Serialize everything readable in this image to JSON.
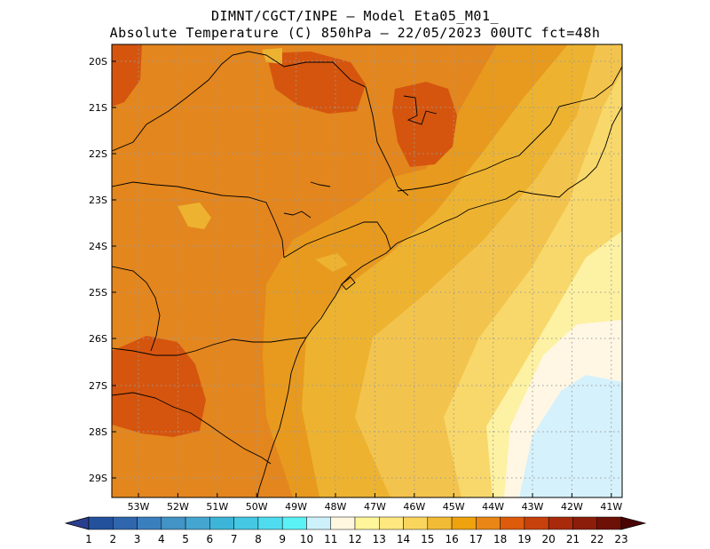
{
  "header": {
    "line1": "DIMNT/CGCT/INPE –  Model Eta05_M01_",
    "line2": "Absolute Temperature (C) 850hPa –  22/05/2023 00UTC fct=48h"
  },
  "axes": {
    "lat_labels": [
      "20S",
      "21S",
      "22S",
      "23S",
      "24S",
      "25S",
      "26S",
      "27S",
      "28S",
      "29S"
    ],
    "lon_labels": [
      "53W",
      "52W",
      "51W",
      "50W",
      "49W",
      "48W",
      "47W",
      "46W",
      "45W",
      "44W",
      "43W",
      "42W",
      "41W"
    ]
  },
  "colorbar": {
    "labels": [
      "1",
      "2",
      "3",
      "4",
      "5",
      "6",
      "7",
      "8",
      "9",
      "10",
      "11",
      "12",
      "13",
      "14",
      "15",
      "16",
      "17",
      "18",
      "19",
      "20",
      "21",
      "22",
      "23"
    ],
    "colors": [
      "#2a3e8e",
      "#23519c",
      "#2f66ad",
      "#3a7fbd",
      "#4293c6",
      "#44a6d0",
      "#3db5d8",
      "#44c8e4",
      "#4fdcf0",
      "#5bf2f6",
      "#cdf1fb",
      "#fff7e0",
      "#fff59a",
      "#ffe880",
      "#fad55e",
      "#f2bb36",
      "#eea20e",
      "#e98716",
      "#dd5b0b",
      "#c7410c",
      "#a82a0b",
      "#8c1d0a",
      "#6d1006",
      "#4a0404"
    ]
  },
  "style": {
    "deep_orange": "#d5550e",
    "orange": "#e3861e",
    "dark_orange": "#e89a1e",
    "amber": "#edb330",
    "gold": "#f3c44d",
    "yellow": "#f8d86b",
    "light_yellow": "#fdf1a3",
    "cream": "#fff7e4",
    "pale_cyan": "#d5f1fb",
    "coast": "#000000",
    "grid": "#9a9a9a"
  }
}
